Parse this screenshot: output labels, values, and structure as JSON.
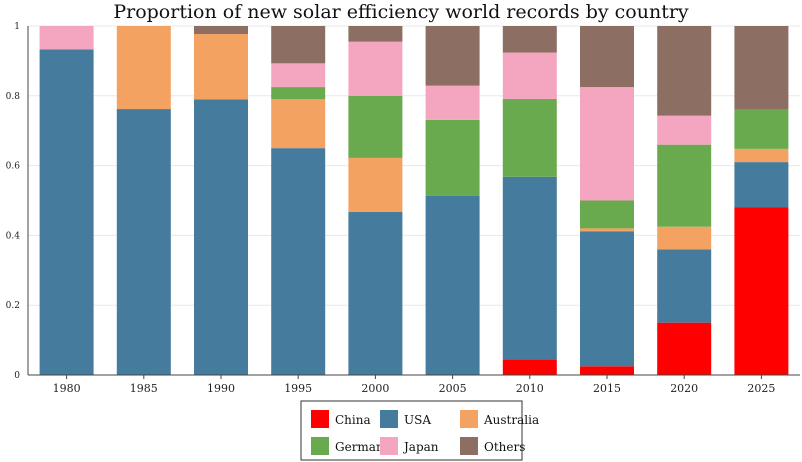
{
  "chart_data": {
    "type": "bar",
    "stacked": true,
    "title": "Proportion of new solar efficiency world records by country",
    "xlabel": "",
    "ylabel": "",
    "ylim": [
      0,
      1
    ],
    "yticks": [
      "0",
      "0.2",
      "0.4",
      "0.6",
      "0.8",
      "1"
    ],
    "categories": [
      "1980",
      "1985",
      "1990",
      "1995",
      "2000",
      "2005",
      "2010",
      "2015",
      "2020",
      "2025"
    ],
    "series": [
      {
        "name": "China",
        "color": "#ff0000",
        "values": [
          0,
          0,
          0,
          0,
          0,
          0,
          0.045,
          0.025,
          0.15,
          0.48
        ]
      },
      {
        "name": "USA",
        "color": "#457b9d",
        "values": [
          0.933,
          0.762,
          0.79,
          0.65,
          0.467,
          0.513,
          0.523,
          0.387,
          0.21,
          0.13
        ]
      },
      {
        "name": "Australia",
        "color": "#f4a261",
        "values": [
          0,
          0.238,
          0.187,
          0.14,
          0.155,
          0,
          0,
          0.008,
          0.065,
          0.038
        ]
      },
      {
        "name": "Germany",
        "color": "#6aaa4f",
        "values": [
          0,
          0,
          0,
          0.035,
          0.178,
          0.218,
          0.223,
          0.08,
          0.235,
          0.112
        ]
      },
      {
        "name": "Japan",
        "color": "#f4a6c0",
        "values": [
          0.067,
          0,
          0,
          0.068,
          0.155,
          0.098,
          0.133,
          0.325,
          0.083,
          0
        ]
      },
      {
        "name": "Others",
        "color": "#8d6e63",
        "values": [
          0,
          0,
          0.023,
          0.107,
          0.045,
          0.171,
          0.076,
          0.175,
          0.257,
          0.24
        ]
      }
    ],
    "legend_position": "bottom-center",
    "grid": "horizontal"
  }
}
